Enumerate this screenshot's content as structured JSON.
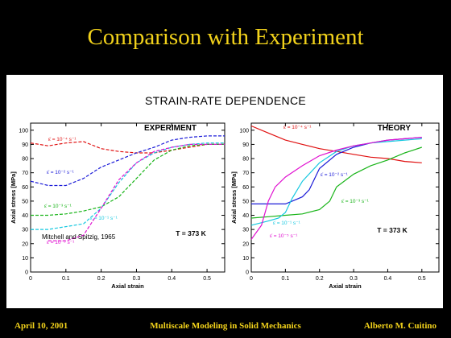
{
  "slide": {
    "title": "Comparison with Experiment",
    "main_title": "STRAIN-RATE DEPENDENCE",
    "footer_left": "April 10, 2001",
    "footer_center": "Multiscale Modeling in Solid Mechanics",
    "footer_right": "Alberto M. Cuitino"
  },
  "chart_data": [
    {
      "type": "line",
      "title": "EXPERIMENT",
      "xlabel": "Axial strain",
      "ylabel": "Axial stress [MPa]",
      "xlim": [
        0,
        0.55
      ],
      "ylim": [
        0,
        105
      ],
      "xticks": [
        "0",
        "0.1",
        "0.2",
        "0.3",
        "0.4",
        "0.5"
      ],
      "yticks": [
        "0",
        "10",
        "20",
        "30",
        "40",
        "50",
        "60",
        "70",
        "80",
        "90",
        "100"
      ],
      "annotations": [
        "T = 373 K",
        "Mitchell and Spitzig, 1965"
      ],
      "series": [
        {
          "label": "ε̇ = 10⁻⁴ s⁻¹",
          "color": "#e01010",
          "x": [
            0,
            0.05,
            0.1,
            0.15,
            0.2,
            0.25,
            0.3,
            0.35,
            0.4,
            0.45,
            0.5,
            0.55
          ],
          "y": [
            91,
            89,
            91,
            92,
            87,
            85,
            84,
            84,
            86,
            88,
            90,
            90
          ]
        },
        {
          "label": "ε̇ = 10⁻² s⁻¹",
          "color": "#1c1cd8",
          "x": [
            0,
            0.05,
            0.1,
            0.15,
            0.2,
            0.25,
            0.3,
            0.35,
            0.4,
            0.45,
            0.5,
            0.55
          ],
          "y": [
            64,
            61,
            61,
            66,
            74,
            79,
            84,
            88,
            93,
            95,
            96,
            96
          ]
        },
        {
          "label": "ε̇ = 10⁻³ s⁻¹",
          "color": "#18b418",
          "x": [
            0,
            0.05,
            0.1,
            0.15,
            0.2,
            0.25,
            0.3,
            0.35,
            0.4,
            0.45,
            0.5,
            0.55
          ],
          "y": [
            40,
            40,
            41,
            43,
            46,
            53,
            66,
            79,
            86,
            89,
            90,
            90
          ]
        },
        {
          "label": "ε̇ = 10⁻¹ s⁻¹",
          "color": "#16c8e0",
          "x": [
            0,
            0.05,
            0.1,
            0.15,
            0.2,
            0.25,
            0.3,
            0.35,
            0.4,
            0.45,
            0.5,
            0.55
          ],
          "y": [
            30,
            30,
            32,
            34,
            45,
            63,
            77,
            84,
            88,
            90,
            91,
            91
          ]
        },
        {
          "label": "ε̇ = 10⁻⁵ s⁻¹",
          "color": "#e010d0",
          "x": [
            0.05,
            0.1,
            0.15,
            0.2,
            0.25,
            0.3,
            0.35,
            0.4,
            0.45,
            0.5,
            0.55
          ],
          "y": [
            22,
            22,
            26,
            45,
            65,
            77,
            85,
            88,
            90,
            90,
            90
          ]
        }
      ]
    },
    {
      "type": "line",
      "title": "THEORY",
      "xlabel": "Axial strain",
      "ylabel": "Axial stress [MPa]",
      "xlim": [
        0,
        0.55
      ],
      "ylim": [
        0,
        105
      ],
      "xticks": [
        "0",
        "0.1",
        "0.2",
        "0.3",
        "0.4",
        "0.5"
      ],
      "yticks": [
        "0",
        "10",
        "20",
        "30",
        "40",
        "50",
        "60",
        "70",
        "80",
        "90",
        "100"
      ],
      "annotations": [
        "T = 373 K"
      ],
      "series": [
        {
          "label": "ε̇ = 10⁻⁴ s⁻¹",
          "color": "#e01010",
          "x": [
            0,
            0.05,
            0.1,
            0.15,
            0.2,
            0.25,
            0.3,
            0.35,
            0.4,
            0.45,
            0.5
          ],
          "y": [
            103,
            98,
            93,
            90,
            87,
            85,
            83,
            81,
            80,
            78,
            77
          ]
        },
        {
          "label": "ε̇ = 10⁻² s⁻¹",
          "color": "#1c1cd8",
          "x": [
            0,
            0.05,
            0.1,
            0.12,
            0.15,
            0.17,
            0.2,
            0.25,
            0.3,
            0.35,
            0.4,
            0.45,
            0.5
          ],
          "y": [
            48,
            48,
            48,
            50,
            53,
            58,
            73,
            83,
            88,
            91,
            93,
            94,
            95
          ]
        },
        {
          "label": "ε̇ = 10⁻³ s⁻¹",
          "color": "#18b418",
          "x": [
            0,
            0.05,
            0.1,
            0.15,
            0.2,
            0.23,
            0.25,
            0.3,
            0.35,
            0.4,
            0.45,
            0.5
          ],
          "y": [
            38,
            39,
            40,
            41,
            44,
            50,
            60,
            69,
            75,
            79,
            84,
            88
          ]
        },
        {
          "label": "ε̇ = 10⁻¹ s⁻¹",
          "color": "#16c8e0",
          "x": [
            0,
            0.05,
            0.08,
            0.1,
            0.12,
            0.15,
            0.2,
            0.25,
            0.3,
            0.35,
            0.4,
            0.45,
            0.5
          ],
          "y": [
            33,
            36,
            38,
            42,
            52,
            64,
            77,
            85,
            89,
            91,
            92,
            93,
            94
          ]
        },
        {
          "label": "ε̇ = 10⁻⁵ s⁻¹",
          "color": "#e010d0",
          "x": [
            0,
            0.03,
            0.05,
            0.07,
            0.1,
            0.15,
            0.2,
            0.25,
            0.3,
            0.35,
            0.4,
            0.45,
            0.5
          ],
          "y": [
            23,
            33,
            50,
            60,
            67,
            75,
            82,
            86,
            89,
            91,
            93,
            94,
            95
          ]
        }
      ]
    }
  ]
}
